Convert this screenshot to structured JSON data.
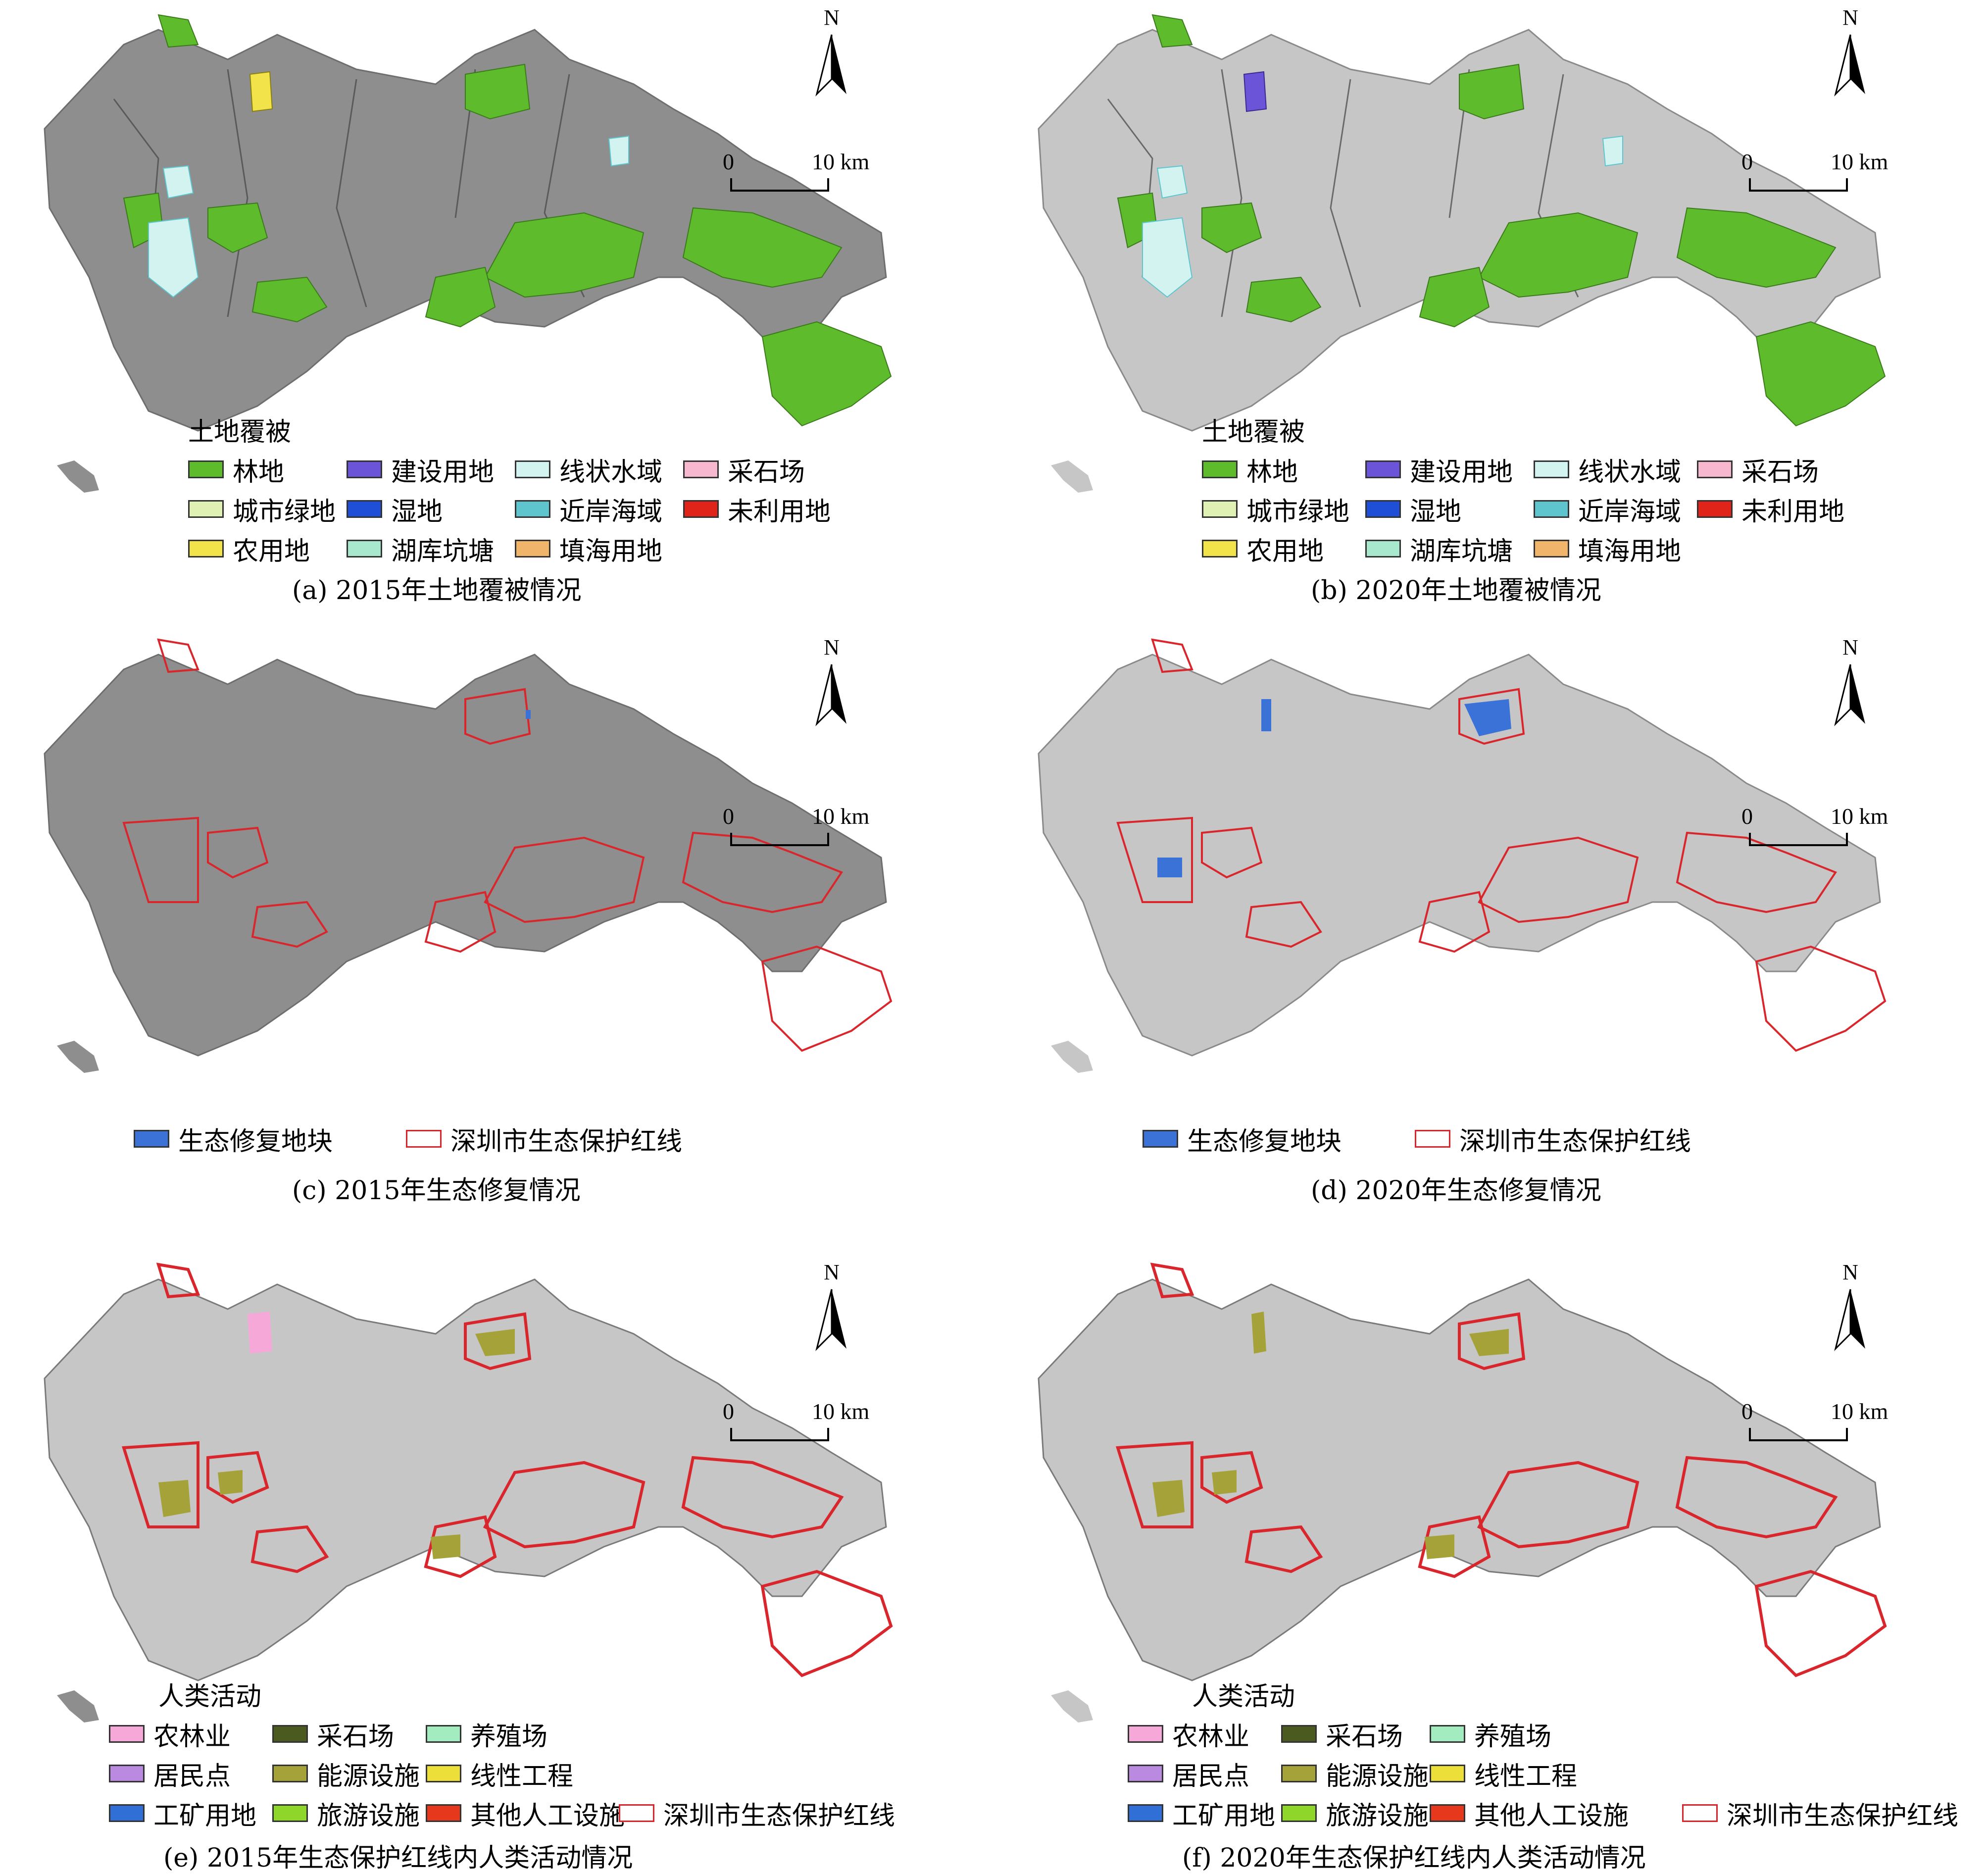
{
  "colors": {
    "forest": "#5dbb2c",
    "urban_green": "#dff2b3",
    "farmland": "#f3e34a",
    "construction": "#6b54d8",
    "wetland": "#1f4fd6",
    "lake_pond": "#a8e8cc",
    "linear_water": "#d2f3ef",
    "nearshore_sea": "#5ec5cf",
    "reclamation": "#f0b46a",
    "quarry": "#f7b7cf",
    "unused": "#e0241a",
    "restoration": "#3a72d8",
    "redline": "#d8262c",
    "agri_forestry": "#f6a9d8",
    "residential": "#b98ae0",
    "industrial_mining": "#2f6fd6",
    "quarry_dark": "#4b5a1e",
    "energy": "#a6a23a",
    "tourism": "#8fd62a",
    "breeding": "#a3ecc0",
    "linear_engineering": "#ecdf3a",
    "other_artificial": "#e6381d",
    "map_gray_dark": "#8e8e8e",
    "map_gray_light": "#c6c6c6"
  },
  "north_label": "N",
  "scale": {
    "zero": "0",
    "ten": "10 km"
  },
  "panels": {
    "a": {
      "legend_title": "土地覆被",
      "legend": [
        "林地",
        "建设用地",
        "线状水域",
        "采石场",
        "城市绿地",
        "湿地",
        "近岸海域",
        "未利用地",
        "农用地",
        "湖库坑塘",
        "填海用地"
      ],
      "caption": "(a) 2015年土地覆被情况"
    },
    "b": {
      "legend_title": "土地覆被",
      "legend": [
        "林地",
        "建设用地",
        "线状水域",
        "采石场",
        "城市绿地",
        "湿地",
        "近岸海域",
        "未利用地",
        "农用地",
        "湖库坑塘",
        "填海用地"
      ],
      "caption": "(b) 2020年土地覆被情况"
    },
    "c": {
      "legend": [
        "生态修复地块",
        "深圳市生态保护红线"
      ],
      "caption": "(c) 2015年生态修复情况"
    },
    "d": {
      "legend": [
        "生态修复地块",
        "深圳市生态保护红线"
      ],
      "caption": "(d) 2020年生态修复情况"
    },
    "e": {
      "legend_title": "人类活动",
      "legend": [
        "农林业",
        "采石场",
        "养殖场",
        "居民点",
        "能源设施",
        "线性工程",
        "工矿用地",
        "旅游设施",
        "其他人工设施",
        "深圳市生态保护红线"
      ],
      "caption": "(e) 2015年生态保护红线内人类活动情况"
    },
    "f": {
      "legend_title": "人类活动",
      "legend": [
        "农林业",
        "采石场",
        "养殖场",
        "居民点",
        "能源设施",
        "线性工程",
        "工矿用地",
        "旅游设施",
        "其他人工设施",
        "深圳市生态保护红线"
      ],
      "caption": "(f) 2020年生态保护红线内人类活动情况"
    }
  }
}
